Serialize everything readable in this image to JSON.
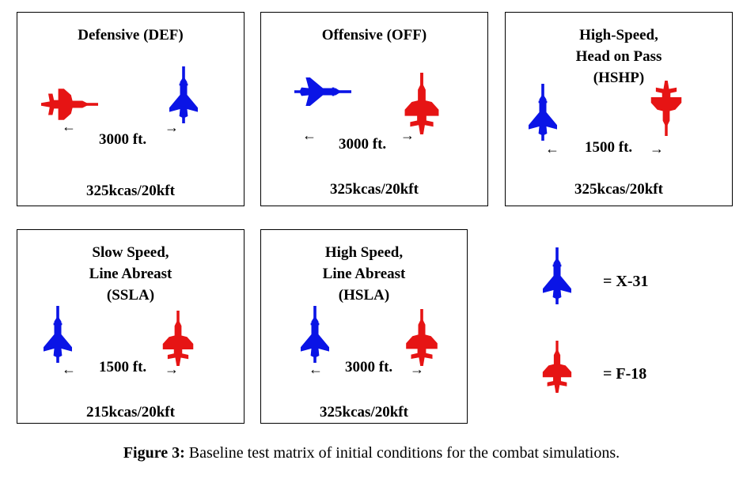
{
  "colors": {
    "x31": "#0a14e6",
    "f18": "#e61414"
  },
  "panels": [
    {
      "title": "Defensive (DEF)",
      "distance": "3000 ft.",
      "speed": "325kcas/20kft"
    },
    {
      "title": "Offensive (OFF)",
      "distance": "3000 ft.",
      "speed": "325kcas/20kft"
    },
    {
      "title": "High-Speed,\nHead on Pass\n(HSHP)",
      "distance": "1500 ft.",
      "speed": "325kcas/20kft"
    },
    {
      "title": "Slow Speed,\nLine Abreast\n(SSLA)",
      "distance": "1500 ft.",
      "speed": "215kcas/20kft"
    },
    {
      "title": "High Speed,\nLine Abreast\n(HSLA)",
      "distance": "3000 ft.",
      "speed": "325kcas/20kft"
    }
  ],
  "legend": {
    "x31_label": "= X-31",
    "f18_label": "= F-18"
  },
  "caption": {
    "label": "Figure 3:",
    "text": " Baseline test matrix of initial conditions for the combat simulations."
  }
}
